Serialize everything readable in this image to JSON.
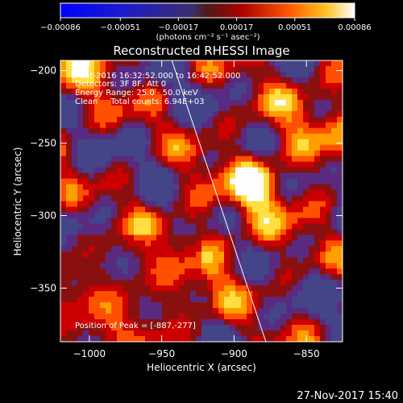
{
  "chart_data": {
    "type": "heatmap",
    "title": "Reconstructed RHESSI Image",
    "xlabel": "Heliocentric X (arcsec)",
    "ylabel": "Heliocentric Y (arcsec)",
    "xlim": [
      -1020,
      -825
    ],
    "ylim": [
      -387,
      -193
    ],
    "xticks": [
      -1000,
      -950,
      -900,
      -850
    ],
    "yticks": [
      -200,
      -250,
      -300,
      -350
    ],
    "xtick_labels": [
      "−1000",
      "−950",
      "−900",
      "−850"
    ],
    "ytick_labels": [
      "−200",
      "−250",
      "−300",
      "−350"
    ],
    "colorbar": {
      "min": -0.00086,
      "max": 0.00086,
      "ticks": [
        -0.00086,
        -0.00051,
        -0.00017,
        0.00017,
        0.00051,
        0.00086
      ],
      "tick_labels": [
        "−0.00086",
        "−0.00051",
        "−0.00017",
        "0.00017",
        "0.00051",
        "0.00086"
      ],
      "unit_label": "(photons cm⁻² s⁻¹ asec⁻²)",
      "colors": [
        "#0000ff",
        "#2222cc",
        "#444488",
        "#5a2a80",
        "#8a1010",
        "#cc0000",
        "#ff5000",
        "#ffa000",
        "#ffe040",
        "#ffffff"
      ]
    },
    "annotations": [
      "2-Oct-2016 16:32:52.000 to 16:42:52.000",
      "Detectors: 3F 8F, Att 0",
      "Energy Range: 25.0 - 50.0 keV",
      "Clean     Total counts: 6.94E+03",
      "Position of Peak = [-887,-277]"
    ],
    "peak": {
      "x": -887,
      "y": -277
    },
    "limb_line": {
      "x1": -943,
      "y1": -193,
      "x2": -878,
      "y2": -387
    },
    "date_stamp": "27-Nov-2017 15:40"
  }
}
